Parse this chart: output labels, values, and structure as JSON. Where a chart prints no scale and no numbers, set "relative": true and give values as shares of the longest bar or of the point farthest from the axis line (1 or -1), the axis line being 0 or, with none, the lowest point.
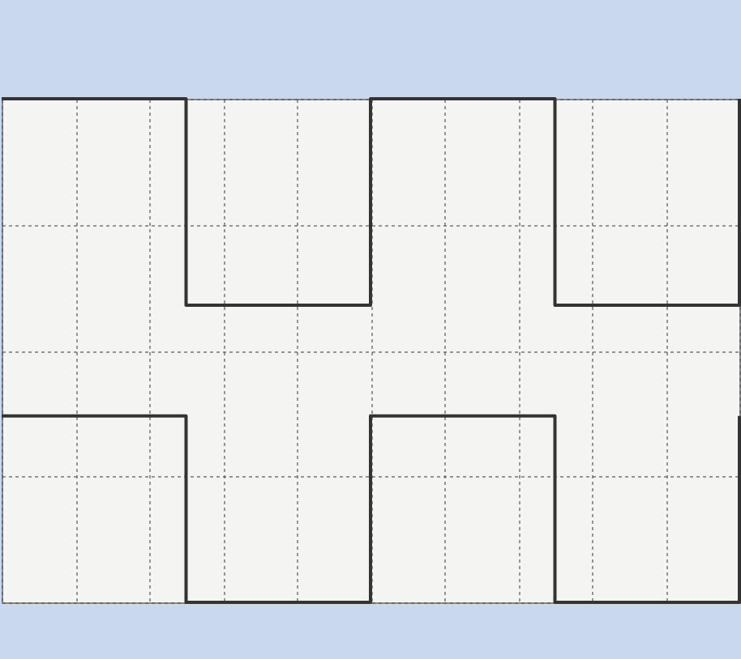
{
  "chart_data": {
    "type": "step",
    "relative": true,
    "categories": [
      null,
      null,
      null,
      null,
      null,
      null,
      null,
      null,
      null,
      null,
      null,
      null,
      null,
      null,
      null,
      null,
      null,
      null,
      null,
      null,
      null
    ],
    "series": [
      {
        "color": "#333333",
        "values": [
          1,
          1,
          1,
          1,
          1,
          0.59,
          0.59,
          0.59,
          0.59,
          0.59,
          1,
          1,
          1,
          1,
          1,
          0.59,
          0.59,
          0.59,
          0.59,
          0.59,
          1
        ]
      },
      {
        "color": "#333333",
        "values": [
          0.37,
          0.37,
          0.37,
          0.37,
          0.37,
          0,
          0,
          0,
          0,
          0,
          0.37,
          0.37,
          0.37,
          0.37,
          0.37,
          0,
          0,
          0,
          0,
          0,
          0.37
        ]
      }
    ],
    "grid": true,
    "marker": "none",
    "line_style": "solid"
  }
}
